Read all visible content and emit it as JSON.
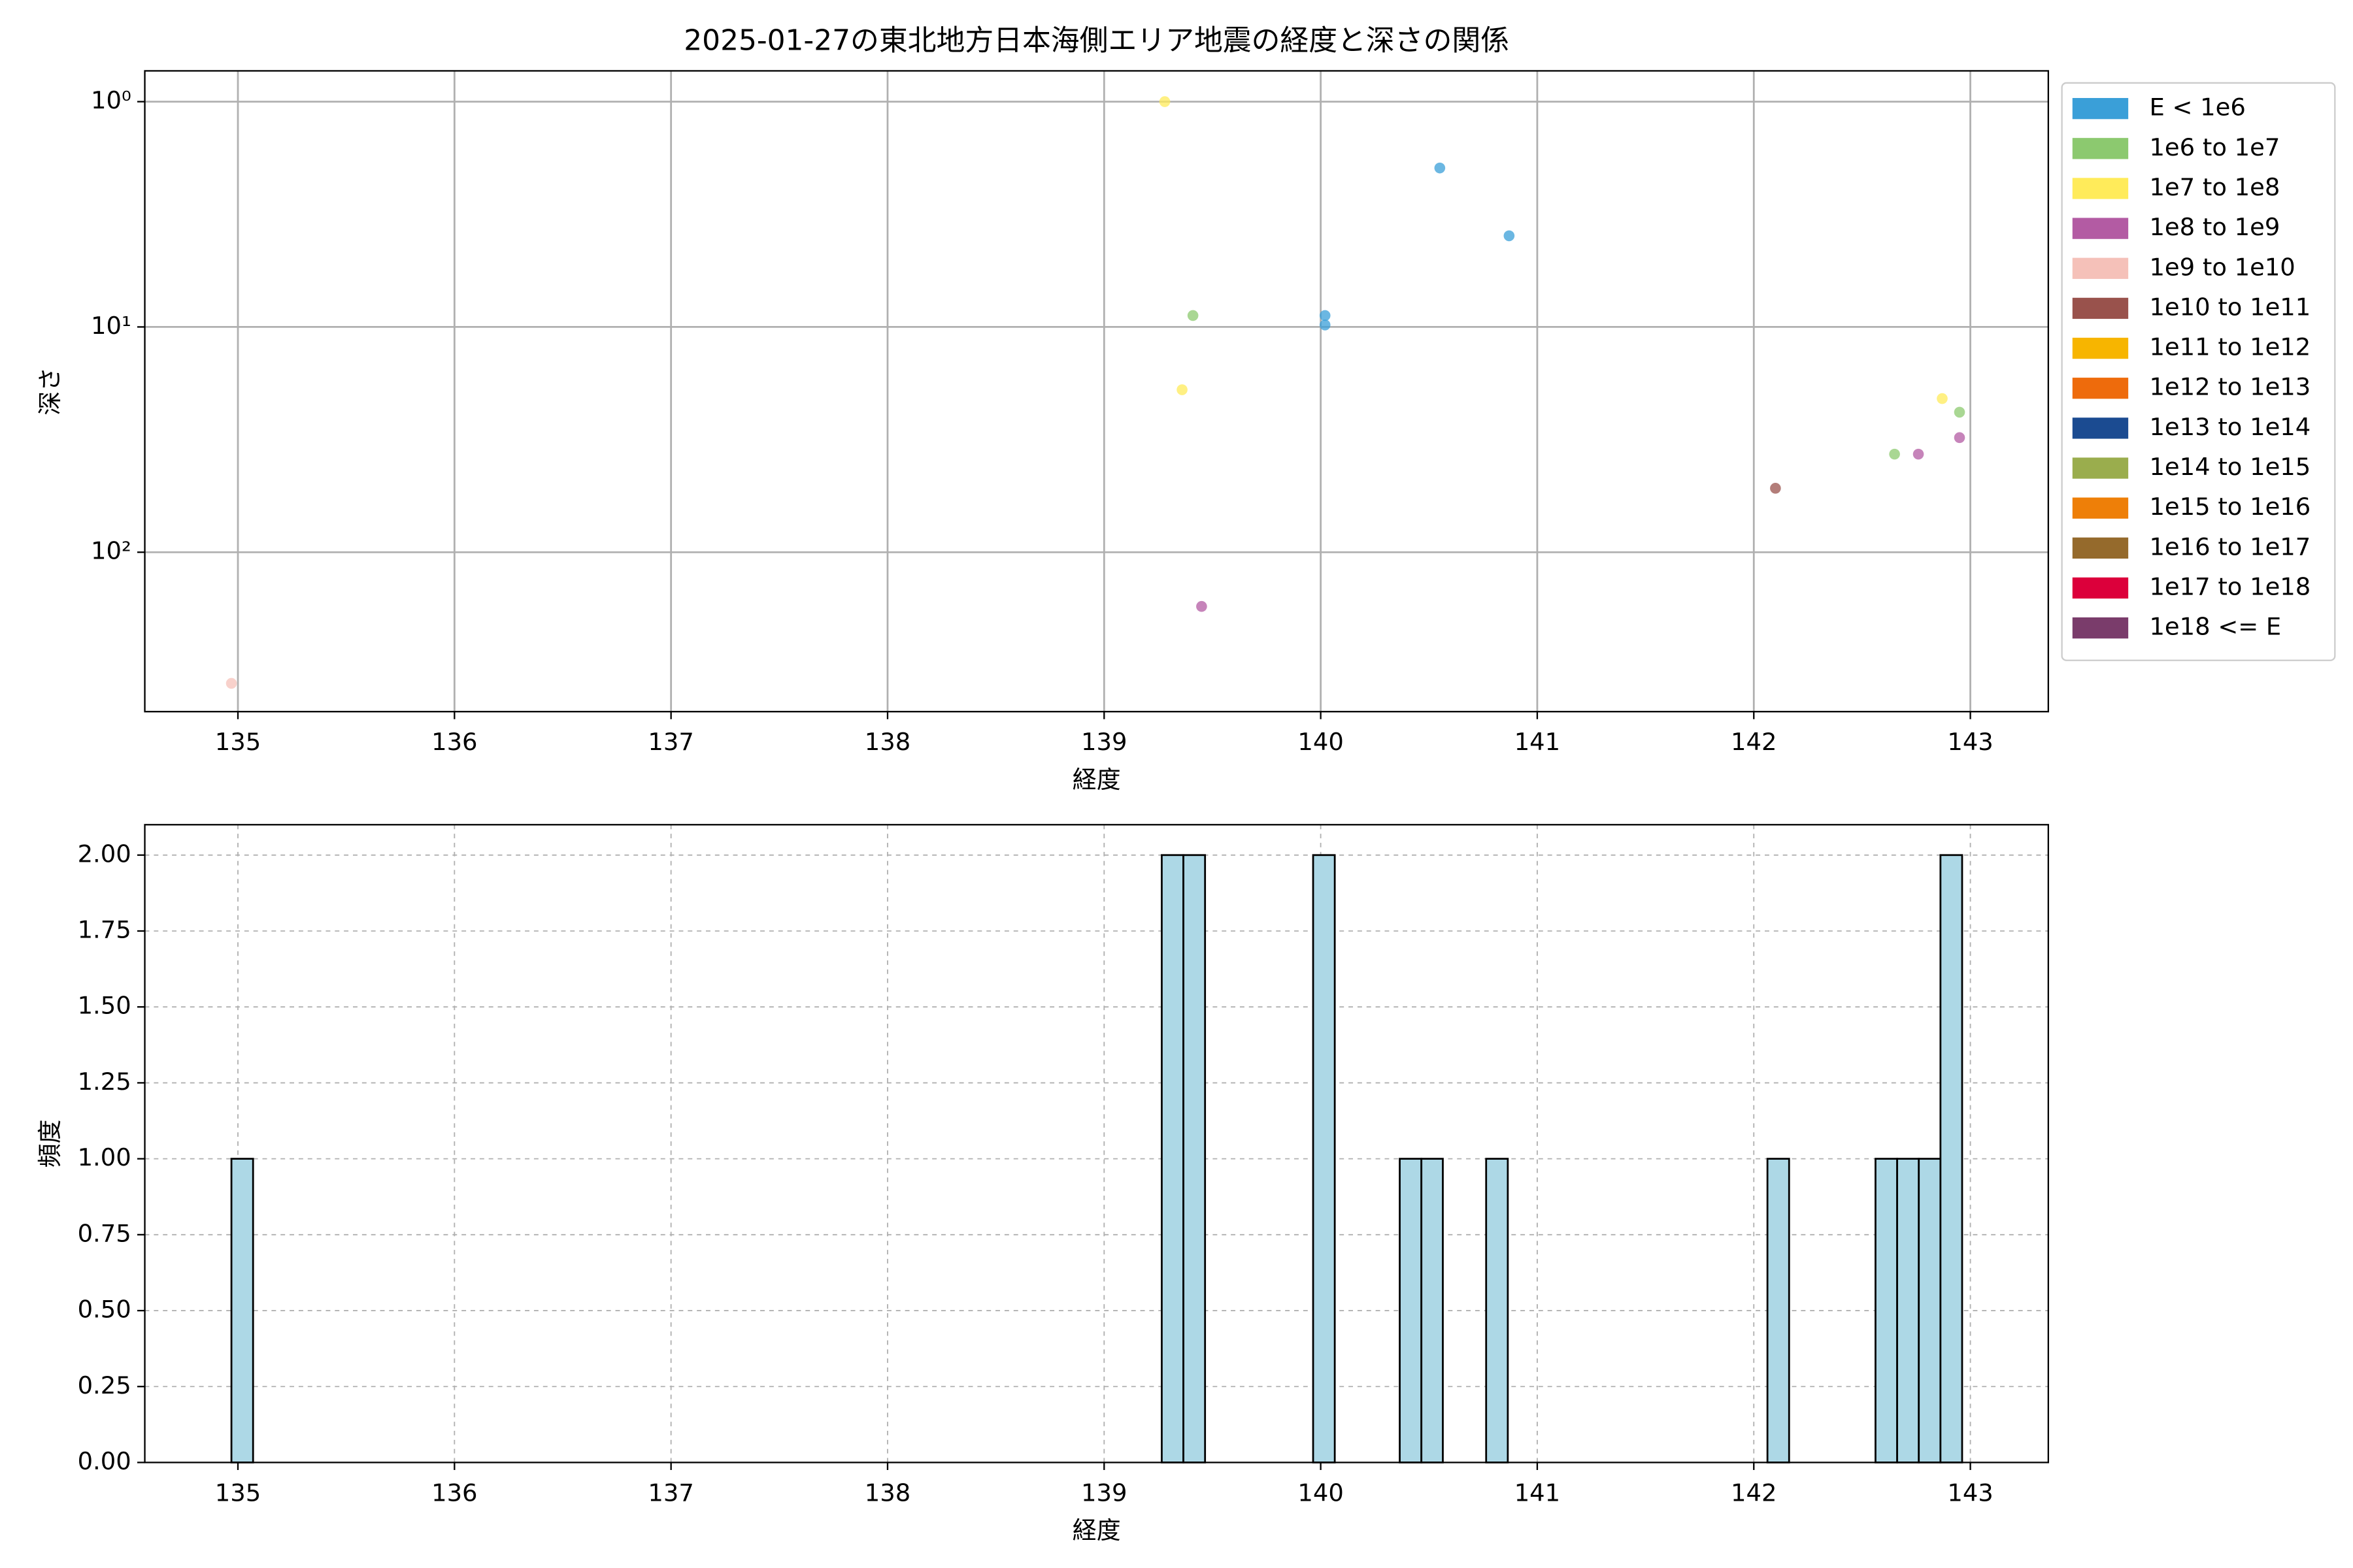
{
  "chart_data": [
    {
      "type": "scatter",
      "title": "2025-01-27の東北地方日本海側エリア地震の経度と深さの関係",
      "xlabel": "経度",
      "ylabel": "深さ",
      "xlim": [
        134.57,
        143.36
      ],
      "ylim": [
        510,
        0.73
      ],
      "log_y": true,
      "grid": "solid",
      "legend": "outside right",
      "xticks": [
        135,
        136,
        137,
        138,
        139,
        140,
        141,
        142,
        143
      ],
      "yticks": [
        {
          "value": 1,
          "label": "10⁰"
        },
        {
          "value": 10,
          "label": "10¹"
        },
        {
          "value": 100,
          "label": "10²"
        }
      ],
      "series": [
        {
          "name": "E < 1e6",
          "color": "#3a9fd8",
          "x": [
            140.55,
            140.87,
            140.02,
            140.02
          ],
          "values": [
            1.97,
            3.94,
            8.9,
            9.8
          ]
        },
        {
          "name": "1e6 to 1e7",
          "color": "#8cc96f",
          "x": [
            139.41,
            142.65,
            142.95
          ],
          "values": [
            8.9,
            36.7,
            23.9
          ]
        },
        {
          "name": "1e7 to 1e8",
          "color": "#ffeb5a",
          "x": [
            139.28,
            139.36,
            142.87
          ],
          "values": [
            1.0,
            19,
            20.8
          ]
        },
        {
          "name": "1e8 to 1e9",
          "color": "#b35ba3",
          "x": [
            139.45,
            142.76,
            142.95
          ],
          "values": [
            174,
            36.7,
            31
          ]
        },
        {
          "name": "1e9 to 1e10",
          "color": "#f5c1b9",
          "x": [
            134.97
          ],
          "values": [
            382
          ]
        },
        {
          "name": "1e10 to 1e11",
          "color": "#99524c",
          "x": [
            142.1
          ],
          "values": [
            52
          ]
        },
        {
          "name": "1e11 to 1e12",
          "color": "#f7b500",
          "x": [],
          "values": []
        },
        {
          "name": "1e12 to 1e13",
          "color": "#ee6b0c",
          "x": [],
          "values": []
        },
        {
          "name": "1e13 to 1e14",
          "color": "#1b4b91",
          "x": [],
          "values": []
        },
        {
          "name": "1e14 to 1e15",
          "color": "#9aad4d",
          "x": [],
          "values": []
        },
        {
          "name": "1e15 to 1e16",
          "color": "#ee7f08",
          "x": [],
          "values": []
        },
        {
          "name": "1e16 to 1e17",
          "color": "#956a2c",
          "x": [],
          "values": []
        },
        {
          "name": "1e17 to 1e18",
          "color": "#dc003b",
          "x": [],
          "values": []
        },
        {
          "name": "1e18 <= E",
          "color": "#7a3c6b",
          "x": [],
          "values": []
        }
      ]
    },
    {
      "type": "histogram",
      "xlabel": "経度",
      "ylabel": "頻度",
      "color": "#add8e6",
      "edgecolor": "#000000",
      "grid": "dashed",
      "xlim": [
        134.57,
        143.36
      ],
      "ylim": [
        0,
        2.1
      ],
      "xticks": [
        135,
        136,
        137,
        138,
        139,
        140,
        141,
        142,
        143
      ],
      "yticks": [
        {
          "value": 0,
          "label": "0.00"
        },
        {
          "value": 0.25,
          "label": "0.25"
        },
        {
          "value": 0.5,
          "label": "0.50"
        },
        {
          "value": 0.75,
          "label": "0.75"
        },
        {
          "value": 1,
          "label": "1.00"
        },
        {
          "value": 1.25,
          "label": "1.25"
        },
        {
          "value": 1.5,
          "label": "1.50"
        },
        {
          "value": 1.75,
          "label": "1.75"
        },
        {
          "value": 2,
          "label": "2.00"
        }
      ],
      "bins": [
        134.97,
        135.07,
        135.17,
        135.27,
        135.37,
        135.47,
        135.569,
        135.669,
        135.769,
        135.869,
        135.969,
        136.069,
        136.169,
        136.269,
        136.369,
        136.469,
        136.568,
        136.668,
        136.768,
        136.868,
        136.968,
        137.068,
        137.168,
        137.268,
        137.368,
        137.468,
        137.567,
        137.667,
        137.767,
        137.867,
        137.967,
        138.067,
        138.167,
        138.267,
        138.367,
        138.467,
        138.566,
        138.666,
        138.766,
        138.866,
        138.966,
        139.066,
        139.166,
        139.266,
        139.366,
        139.466,
        139.565,
        139.665,
        139.765,
        139.865,
        139.965,
        140.065,
        140.165,
        140.265,
        140.365,
        140.465,
        140.564,
        140.664,
        140.764,
        140.864,
        140.964,
        141.064,
        141.164,
        141.264,
        141.364,
        141.464,
        141.563,
        141.663,
        141.763,
        141.863,
        141.963,
        142.063,
        142.163,
        142.263,
        142.363,
        142.463,
        142.562,
        142.662,
        142.762,
        142.862,
        142.962
      ],
      "counts": [
        1,
        0,
        0,
        0,
        0,
        0,
        0,
        0,
        0,
        0,
        0,
        0,
        0,
        0,
        0,
        0,
        0,
        0,
        0,
        0,
        0,
        0,
        0,
        0,
        0,
        0,
        0,
        0,
        0,
        0,
        0,
        0,
        0,
        0,
        0,
        0,
        0,
        0,
        0,
        0,
        0,
        0,
        0,
        2,
        2,
        0,
        0,
        0,
        0,
        0,
        2,
        0,
        0,
        0,
        1,
        1,
        0,
        0,
        1,
        0,
        0,
        0,
        0,
        0,
        0,
        0,
        0,
        0,
        0,
        0,
        0,
        1,
        0,
        0,
        0,
        0,
        1,
        1,
        1,
        2
      ]
    }
  ]
}
